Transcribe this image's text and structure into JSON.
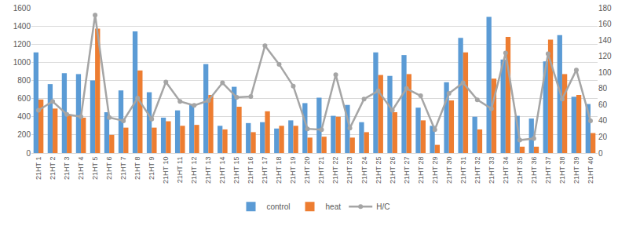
{
  "chart_data": {
    "type": "bar",
    "categories": [
      "21HT 1",
      "21HT 2",
      "21HT 3",
      "21HT 4",
      "21HT 5",
      "21HT 6",
      "21HT 7",
      "21HT 8",
      "21HT 9",
      "21HT 10",
      "21HT 11",
      "21HT 12",
      "21HT 13",
      "21HT 14",
      "21HT 15",
      "21HT 16",
      "21HT 17",
      "21HT 18",
      "21HT 19",
      "21HT 20",
      "21HT 21",
      "21HT 22",
      "21HT 23",
      "21HT 24",
      "21HT 25",
      "21HT 26",
      "21HT 27",
      "21HT 28",
      "21HT 29",
      "21HT 30",
      "21HT 31",
      "21HT 32",
      "21HT 33",
      "21HT 34",
      "21HT 35",
      "21HT 36",
      "21HT 37",
      "21HT 38",
      "21HT 39",
      "21HT 40"
    ],
    "series": [
      {
        "name": "control",
        "type": "bar",
        "color": "#5b9bd5",
        "values": [
          1110,
          760,
          880,
          870,
          800,
          450,
          690,
          1340,
          670,
          390,
          470,
          530,
          980,
          300,
          730,
          330,
          340,
          270,
          360,
          550,
          610,
          410,
          530,
          340,
          1110,
          850,
          1080,
          500,
          300,
          780,
          1270,
          400,
          1500,
          1030,
          410,
          380,
          1010,
          1300,
          620,
          540
        ]
      },
      {
        "name": "heat",
        "type": "bar",
        "color": "#ed7d31",
        "values": [
          590,
          490,
          420,
          390,
          1370,
          200,
          280,
          910,
          280,
          350,
          300,
          310,
          640,
          260,
          510,
          230,
          460,
          300,
          300,
          170,
          180,
          400,
          170,
          230,
          860,
          450,
          870,
          360,
          90,
          580,
          1110,
          260,
          820,
          1280,
          70,
          70,
          1250,
          870,
          640,
          220
        ]
      },
      {
        "name": "H/C",
        "type": "line",
        "axis": "y2",
        "color": "#a5a5a5",
        "marker": "circle",
        "values": [
          53,
          64,
          48,
          45,
          171,
          44,
          40,
          68,
          42,
          88,
          64,
          59,
          65,
          87,
          69,
          70,
          133,
          110,
          83,
          30,
          29,
          97,
          31,
          67,
          77,
          53,
          80,
          71,
          29,
          74,
          87,
          66,
          55,
          124,
          16,
          18,
          123,
          67,
          103,
          40
        ]
      }
    ],
    "ylim": [
      0,
      1600
    ],
    "yticks": [
      0,
      200,
      400,
      600,
      800,
      1000,
      1200,
      1400,
      1600
    ],
    "y2lim": [
      0,
      180
    ],
    "y2ticks": [
      0,
      20,
      40,
      60,
      80,
      100,
      120,
      140,
      160,
      180
    ],
    "grid": true,
    "legend": "bottom"
  }
}
